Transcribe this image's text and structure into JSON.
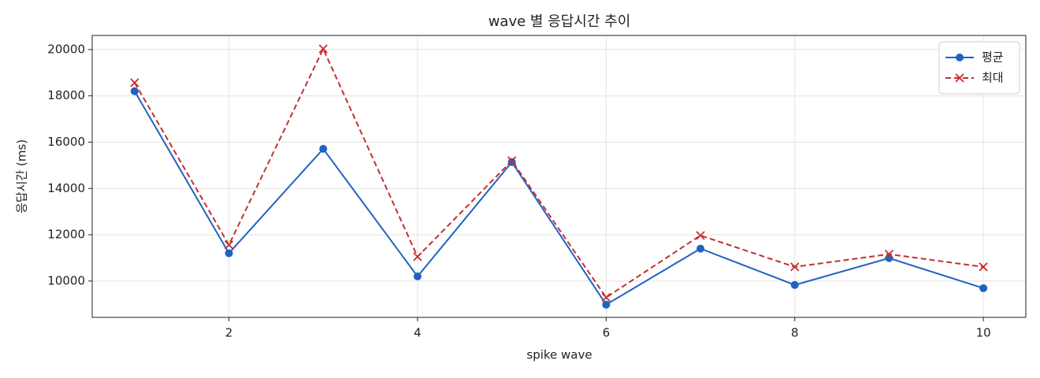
{
  "chart_data": {
    "type": "line",
    "title": "wave 별 응답시간 추이",
    "xlabel": "spike wave",
    "ylabel": "응답시간 (ms)",
    "x": [
      1,
      2,
      3,
      4,
      5,
      6,
      7,
      8,
      9,
      10
    ],
    "series": [
      {
        "name": "평균",
        "color": "#1f63c1",
        "marker": "o",
        "linestyle": "solid",
        "values": [
          18200,
          11200,
          15710,
          10200,
          15140,
          8980,
          11400,
          9830,
          10990,
          9690
        ]
      },
      {
        "name": "최대",
        "color": "#c62f2f",
        "marker": "x",
        "linestyle": "dashed",
        "values": [
          18570,
          11560,
          20030,
          11050,
          15200,
          9290,
          11970,
          10610,
          11160,
          10610
        ]
      }
    ],
    "xlim": [
      0.55,
      10.45
    ],
    "xticks": [
      2,
      4,
      6,
      8,
      10
    ],
    "ylim": [
      8430,
      20610
    ],
    "yticks": [
      10000,
      12000,
      14000,
      16000,
      18000,
      20000
    ],
    "grid": true,
    "legend": "upper right"
  }
}
